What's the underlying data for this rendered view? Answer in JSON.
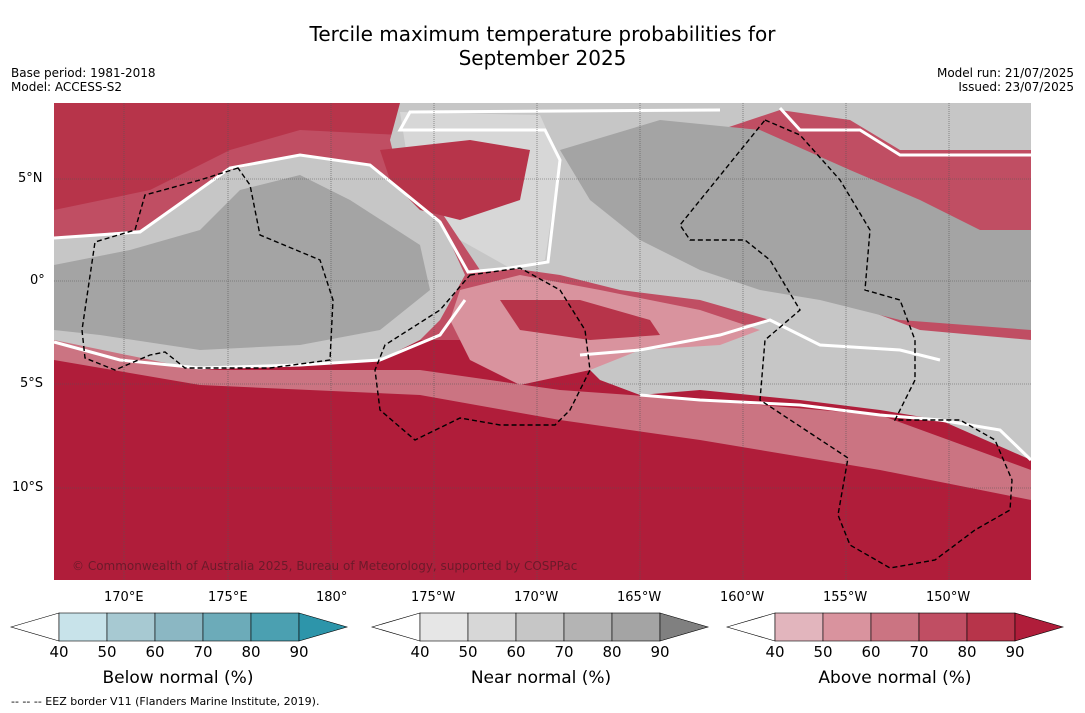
{
  "title_line1": "Tercile maximum temperature probabilities for",
  "title_line2": "September 2025",
  "base_period": "Base period: 1981-2018",
  "model": "Model: ACCESS-S2",
  "model_run": "Model run: 21/07/2025",
  "issued": "Issued: 23/07/2025",
  "copyright": "© Commonwealth of Australia 2025, Bureau of Meteorology, supported by COSPPac",
  "footer": "-- -- -- EEZ border V11 (Flanders Marine Institute, 2019).",
  "map": {
    "lat_labels": [
      "5°N",
      "0°",
      "5°S",
      "10°S"
    ],
    "lon_labels": [
      "170°E",
      "175°E",
      "180°",
      "175°W",
      "170°W",
      "165°W",
      "160°W",
      "155°W",
      "150°W"
    ]
  },
  "colorbars": [
    {
      "label": "Below normal (%)",
      "ticks": [
        "40",
        "50",
        "60",
        "70",
        "80",
        "90"
      ],
      "colors": [
        "#ffffff",
        "#c8e3ea",
        "#a7c9d2",
        "#8bb7c3",
        "#6cabb9",
        "#4ba0b1",
        "#2d95aa"
      ]
    },
    {
      "label": "Near normal (%)",
      "ticks": [
        "40",
        "50",
        "60",
        "70",
        "80",
        "90"
      ],
      "colors": [
        "#ffffff",
        "#e6e6e6",
        "#d7d7d7",
        "#c6c6c6",
        "#b4b4b4",
        "#a4a4a4",
        "#808080"
      ]
    },
    {
      "label": "Above normal (%)",
      "ticks": [
        "40",
        "50",
        "60",
        "70",
        "80",
        "90"
      ],
      "colors": [
        "#ffffff",
        "#e2b5bd",
        "#d9939e",
        "#cb7482",
        "#c04e63",
        "#b7344a",
        "#b01d3a"
      ]
    }
  ]
}
